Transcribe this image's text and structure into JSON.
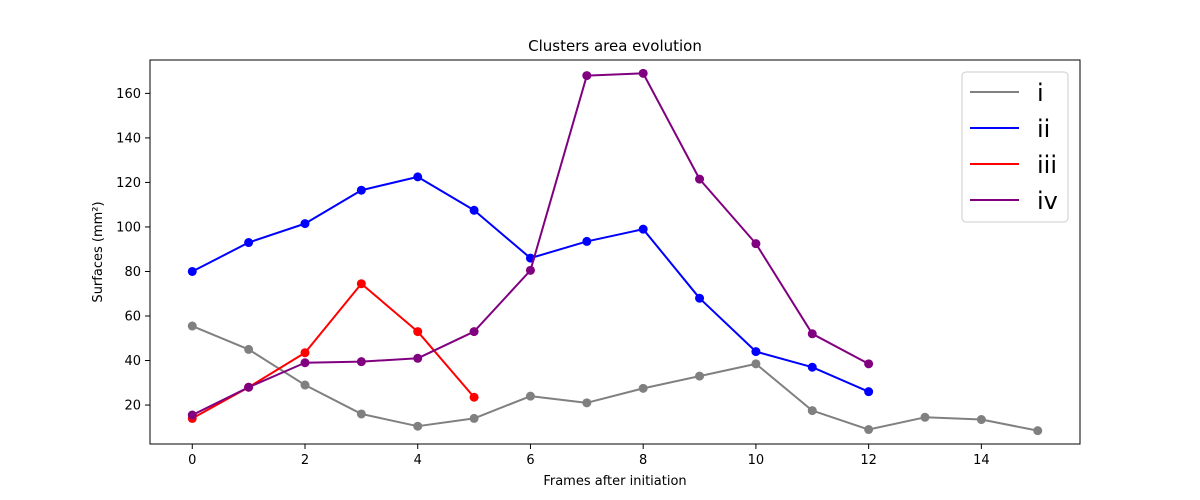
{
  "chart_data": {
    "type": "line",
    "title": "Clusters area evolution",
    "xlabel": "Frames after initiation",
    "ylabel": "Surfaces (mm²)",
    "xlim": [
      -0.75,
      15.75
    ],
    "ylim": [
      2.5,
      175
    ],
    "x_ticks": [
      0,
      2,
      4,
      6,
      8,
      10,
      12,
      14
    ],
    "y_ticks": [
      20,
      40,
      60,
      80,
      100,
      120,
      140,
      160
    ],
    "grid": false,
    "legend_position": "top-right",
    "series": [
      {
        "name": "i",
        "color": "#808080",
        "x": [
          0,
          1,
          2,
          3,
          4,
          5,
          6,
          7,
          8,
          9,
          10,
          11,
          12,
          13,
          14,
          15
        ],
        "y": [
          55.5,
          45,
          29,
          16,
          10.5,
          14,
          24,
          21,
          27.5,
          33,
          38.5,
          17.5,
          9,
          14.5,
          13.5,
          8.5
        ]
      },
      {
        "name": "ii",
        "color": "#0000ff",
        "x": [
          0,
          1,
          2,
          3,
          4,
          5,
          6,
          7,
          8,
          9,
          10,
          11,
          12
        ],
        "y": [
          80,
          93,
          101.5,
          116.5,
          122.5,
          107.5,
          86,
          93.5,
          99,
          68,
          44,
          37,
          26
        ]
      },
      {
        "name": "iii",
        "color": "#ff0000",
        "x": [
          0,
          1,
          2,
          3,
          4,
          5
        ],
        "y": [
          14,
          28,
          43.5,
          74.5,
          53,
          23.5
        ]
      },
      {
        "name": "iv",
        "color": "#800080",
        "x": [
          0,
          1,
          2,
          3,
          4,
          5,
          6,
          7,
          8,
          9,
          10,
          11,
          12
        ],
        "y": [
          15.5,
          28,
          39,
          39.5,
          41,
          53,
          80.5,
          168,
          169,
          121.5,
          92.5,
          52,
          38.5
        ]
      }
    ]
  }
}
